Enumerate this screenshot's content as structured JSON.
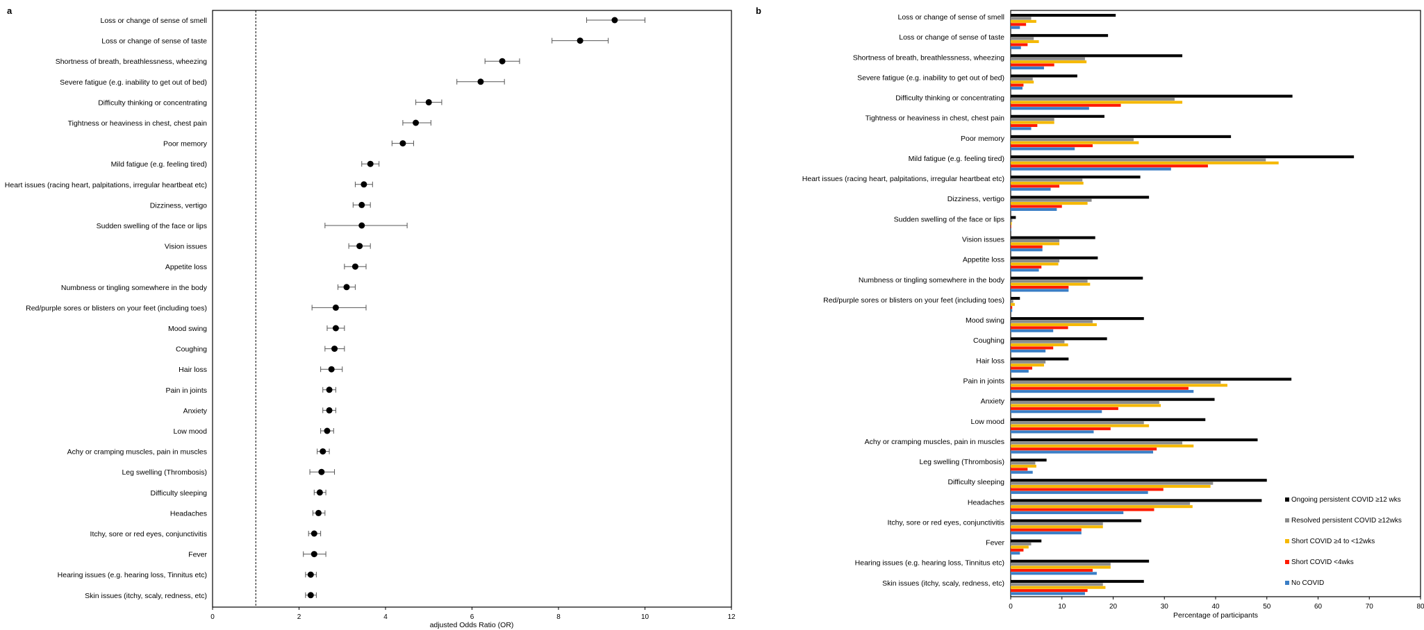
{
  "panel_a": {
    "tag": "a",
    "xlabel": "adjusted Odds Ratio (OR)"
  },
  "panel_b": {
    "tag": "b",
    "xlabel": "Percentage of participants"
  },
  "colors": {
    "ongoing": "#000000",
    "resolved": "#8c8c8c",
    "short4to12": "#f5b800",
    "short4": "#ff1a00",
    "nocovid": "#3a7ec6"
  },
  "chart_data": [
    {
      "type": "scatter",
      "subtype": "forest-plot",
      "xlabel": "adjusted Odds Ratio (OR)",
      "xlim": [
        0,
        12
      ],
      "xticks": [
        "0",
        "2",
        "4",
        "6",
        "8",
        "10",
        "12"
      ],
      "reference_line": 1,
      "categories": [
        "Loss or change of sense of smell",
        "Loss or change of sense of taste",
        "Shortness of breath, breathlessness, wheezing",
        "Severe fatigue (e.g. inability to get out of bed)",
        "Difficulty thinking or concentrating",
        "Tightness or heaviness in chest, chest pain",
        "Poor memory",
        "Mild fatigue (e.g. feeling tired)",
        "Heart issues (racing heart, palpitations, irregular heartbeat etc)",
        "Dizziness, vertigo",
        "Sudden swelling of the face or lips",
        "Vision issues",
        "Appetite loss",
        "Numbness or tingling somewhere in the body",
        "Red/purple sores or blisters on your feet (including toes)",
        "Mood swing",
        "Coughing",
        "Hair loss",
        "Pain in joints",
        "Anxiety",
        "Low mood",
        "Achy or cramping muscles, pain in muscles",
        "Leg swelling (Thrombosis)",
        "Difficulty sleeping",
        "Headaches",
        "Itchy, sore or red eyes, conjunctivitis",
        "Fever",
        "Hearing issues (e.g. hearing loss, Tinnitus etc)",
        "Skin issues (itchy, scaly, redness, etc)"
      ],
      "or": [
        9.3,
        8.5,
        6.7,
        6.2,
        5.0,
        4.7,
        4.4,
        3.65,
        3.5,
        3.45,
        3.45,
        3.4,
        3.3,
        3.1,
        2.85,
        2.85,
        2.82,
        2.75,
        2.7,
        2.7,
        2.65,
        2.55,
        2.52,
        2.48,
        2.45,
        2.35,
        2.35,
        2.27,
        2.27
      ],
      "ci_low": [
        8.65,
        7.85,
        6.3,
        5.65,
        4.7,
        4.4,
        4.15,
        3.45,
        3.3,
        3.25,
        2.6,
        3.15,
        3.05,
        2.9,
        2.3,
        2.65,
        2.6,
        2.5,
        2.55,
        2.55,
        2.5,
        2.42,
        2.25,
        2.35,
        2.32,
        2.22,
        2.1,
        2.15,
        2.15
      ],
      "ci_high": [
        10.0,
        9.15,
        7.1,
        6.75,
        5.3,
        5.05,
        4.65,
        3.85,
        3.7,
        3.65,
        4.5,
        3.65,
        3.55,
        3.3,
        3.55,
        3.05,
        3.05,
        3.0,
        2.85,
        2.85,
        2.8,
        2.7,
        2.82,
        2.62,
        2.6,
        2.5,
        2.62,
        2.4,
        2.4
      ]
    },
    {
      "type": "bar",
      "orientation": "horizontal",
      "xlabel": "Percentage of participants",
      "xlim": [
        0,
        80
      ],
      "xticks": [
        "0",
        "10",
        "20",
        "30",
        "40",
        "50",
        "60",
        "70",
        "80"
      ],
      "legend_position": "bottom-right",
      "categories": [
        "Loss or change of sense of smell",
        "Loss or change of sense of taste",
        "Shortness of breath, breathlessness, wheezing",
        "Severe fatigue (e.g. inability to get out of bed)",
        "Difficulty thinking or concentrating",
        "Tightness or heaviness in chest, chest pain",
        "Poor memory",
        "Mild fatigue (e.g. feeling tired)",
        "Heart issues (racing heart, palpitations, irregular heartbeat etc)",
        "Dizziness, vertigo",
        "Sudden swelling of the face or lips",
        "Vision issues",
        "Appetite loss",
        "Numbness or tingling somewhere in the body",
        "Red/purple sores or blisters on your feet (including toes)",
        "Mood swing",
        "Coughing",
        "Hair loss",
        "Pain in joints",
        "Anxiety",
        "Low mood",
        "Achy or cramping muscles, pain in muscles",
        "Leg swelling (Thrombosis)",
        "Difficulty sleeping",
        "Headaches",
        "Itchy, sore or red eyes, conjunctivitis",
        "Fever",
        "Hearing issues (e.g. hearing loss, Tinnitus etc)",
        "Skin issues (itchy, scaly, redness, etc)"
      ],
      "series": [
        {
          "name": "Ongoing persistent COVID ≥12 wks",
          "key": "ongoing",
          "values": [
            20.5,
            19,
            33.5,
            13,
            55,
            18.3,
            43,
            67,
            25.3,
            27,
            1,
            16.5,
            17,
            25.8,
            1.8,
            26,
            18.8,
            11.3,
            54.8,
            39.8,
            38,
            48.2,
            7,
            50,
            49,
            25.5,
            6,
            27,
            26
          ]
        },
        {
          "name": "Resolved persistent COVID ≥12wks",
          "key": "resolved",
          "values": [
            4,
            4.5,
            14.5,
            4.3,
            32,
            8.5,
            24,
            49.8,
            14,
            15.8,
            0.3,
            9.5,
            9.5,
            15,
            0.5,
            16,
            10.5,
            6.8,
            41,
            29,
            26,
            33.5,
            4.8,
            39.5,
            35,
            18,
            4,
            19.5,
            18
          ]
        },
        {
          "name": "Short COVID ≥4 to <12wks",
          "key": "short4to12",
          "values": [
            5,
            5.5,
            14.8,
            4.5,
            33.5,
            8.5,
            25,
            52.3,
            14.2,
            15,
            0.2,
            9.5,
            9.3,
            15.5,
            0.8,
            16.8,
            11.2,
            6.5,
            42.3,
            29.3,
            27,
            35.7,
            5,
            39,
            35.5,
            18,
            3.5,
            19.5,
            18.5
          ]
        },
        {
          "name": "Short COVID <4wks",
          "key": "short4",
          "values": [
            3,
            3.3,
            8.5,
            2.5,
            21.5,
            5.2,
            16,
            38.5,
            9.5,
            10,
            0.1,
            6.2,
            6,
            11.3,
            0.3,
            11.2,
            8.3,
            4.2,
            34.7,
            21,
            19.5,
            28.5,
            3.3,
            29.8,
            28,
            13.8,
            2.5,
            16,
            15
          ]
        },
        {
          "name": "No COVID",
          "key": "nocovid",
          "values": [
            1.8,
            2,
            6.5,
            2.3,
            15.3,
            4,
            12.5,
            31.3,
            7.8,
            9,
            0.1,
            6.2,
            5.5,
            11.3,
            0.3,
            8.3,
            6.8,
            3.5,
            35.7,
            17.8,
            16.2,
            27.8,
            4.3,
            26.8,
            22,
            13.8,
            1.8,
            16.8,
            14.5
          ]
        }
      ]
    }
  ]
}
